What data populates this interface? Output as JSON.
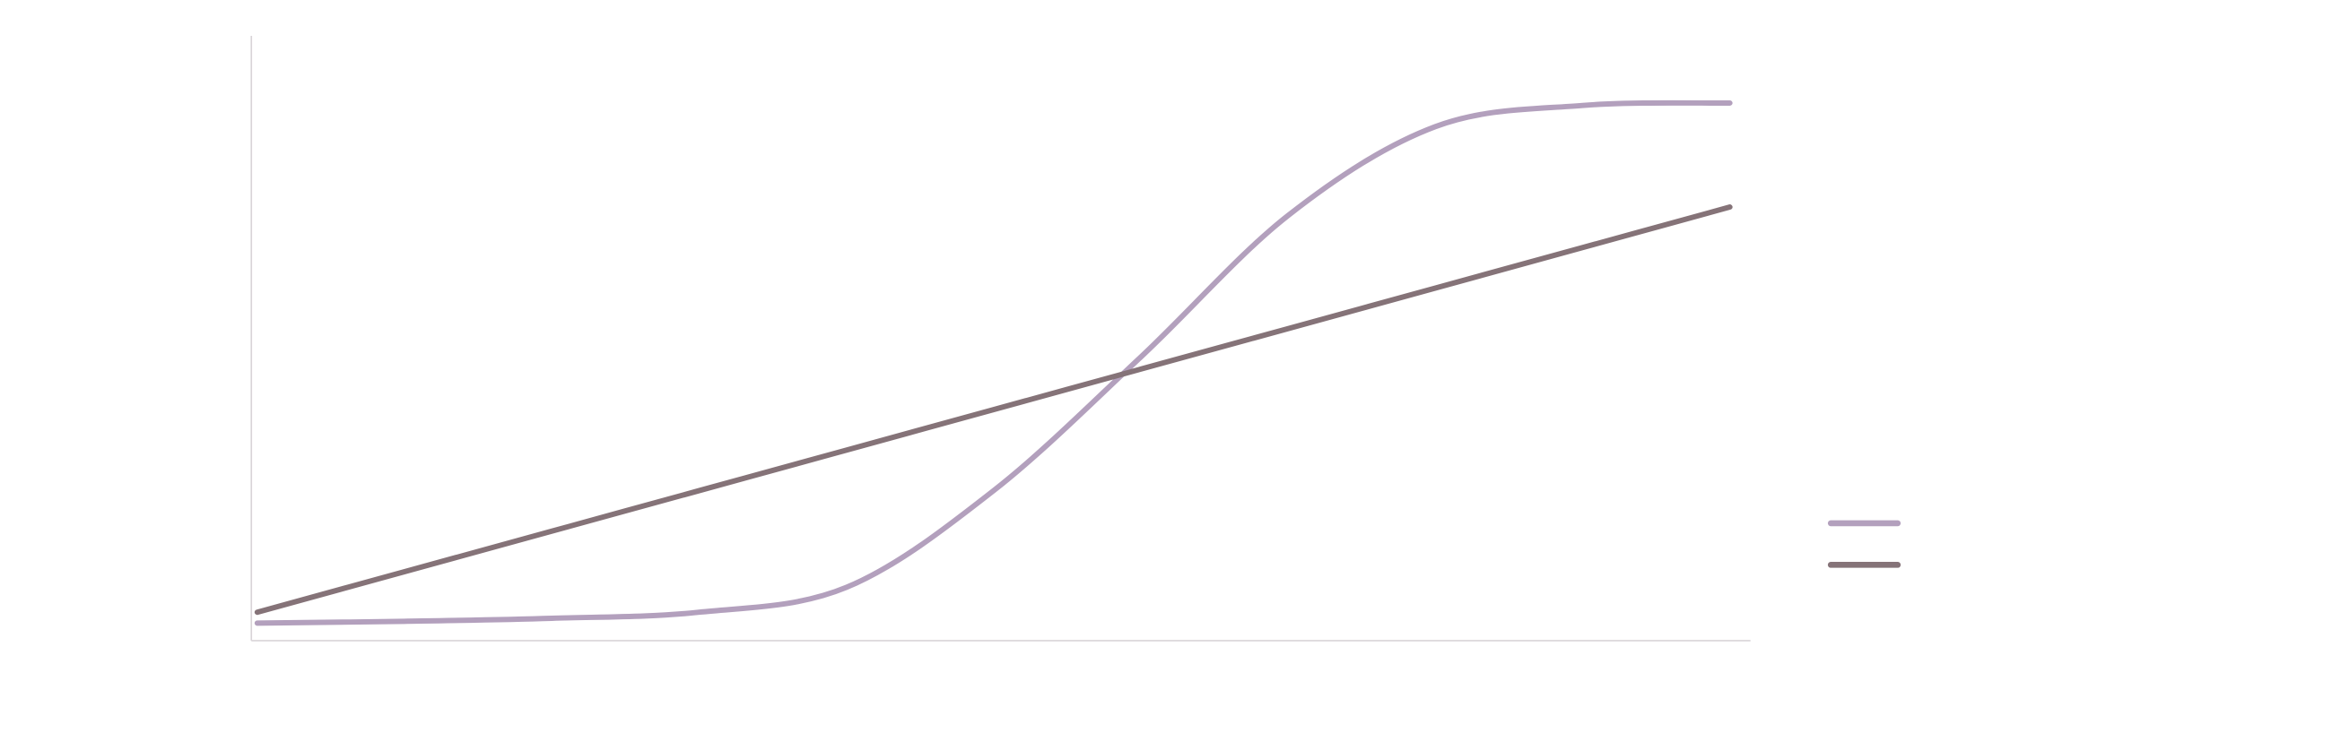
{
  "chart_data": {
    "type": "line",
    "x": [
      0,
      1,
      2,
      3,
      4,
      5,
      6,
      7,
      8,
      9,
      10
    ],
    "xlim": [
      -0.04,
      10.14
    ],
    "ylim": [
      0,
      100
    ],
    "legend": "right",
    "series": [
      {
        "color": "#b3a0bd",
        "values": [
          2.9,
          3.2,
          3.7,
          4.7,
          8.8,
          24.8,
          46.9,
          70.3,
          85.0,
          88.5,
          88.9
        ]
      },
      {
        "color": "#857378",
        "values": [
          4.7,
          11.4,
          18.1,
          24.8,
          31.5,
          38.2,
          44.9,
          51.6,
          58.3,
          65.0,
          71.7
        ]
      }
    ]
  }
}
